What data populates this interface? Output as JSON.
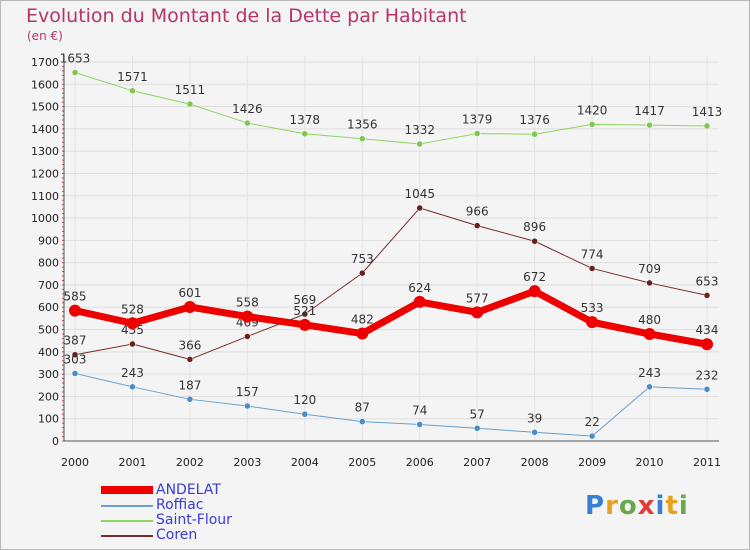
{
  "title": "Evolution du Montant de la Dette par Habitant",
  "unit": "(en €)",
  "logo": {
    "text": "Proxiti",
    "letters": [
      {
        "ch": "P",
        "color": "#3b7fd4"
      },
      {
        "ch": "r",
        "color": "#e8a020"
      },
      {
        "ch": "o",
        "color": "#6aa84f"
      },
      {
        "ch": "x",
        "color": "#e03c31"
      },
      {
        "ch": "i",
        "color": "#3b7fd4"
      },
      {
        "ch": "t",
        "color": "#e8a020"
      },
      {
        "ch": "i",
        "color": "#6aa84f"
      }
    ]
  },
  "chart_data": {
    "type": "line",
    "x": [
      "2000",
      "2001",
      "2002",
      "2003",
      "2004",
      "2005",
      "2006",
      "2007",
      "2008",
      "2009",
      "2010",
      "2011"
    ],
    "ylim": [
      0,
      1700
    ],
    "yticks": [
      0,
      100,
      200,
      300,
      400,
      500,
      600,
      700,
      800,
      900,
      1000,
      1100,
      1200,
      1300,
      1400,
      1500,
      1600,
      1700
    ],
    "grid": true,
    "legend_position": "bottom-left",
    "series": [
      {
        "name": "Saint-Flour",
        "color": "#8fd460",
        "marker": "#7ec850",
        "width": 1,
        "values": [
          1653,
          1571,
          1511,
          1426,
          1378,
          1356,
          1332,
          1379,
          1376,
          1420,
          1417,
          1413
        ]
      },
      {
        "name": "Coren",
        "color": "#7a2a2a",
        "marker": "#6b1f1f",
        "width": 1,
        "values": [
          387,
          435,
          366,
          469,
          569,
          753,
          1045,
          966,
          896,
          774,
          709,
          653
        ]
      },
      {
        "name": "Roffiac",
        "color": "#6a9fcf",
        "marker": "#4a8cc8",
        "width": 1,
        "values": [
          303,
          243,
          187,
          157,
          120,
          87,
          74,
          57,
          39,
          22,
          243,
          232
        ]
      },
      {
        "name": "ANDELAT",
        "color": "#ee0000",
        "marker": "#ee0000",
        "width": 7,
        "values": [
          585,
          528,
          601,
          558,
          521,
          482,
          624,
          577,
          672,
          533,
          480,
          434
        ]
      }
    ],
    "legend_order": [
      "ANDELAT",
      "Roffiac",
      "Saint-Flour",
      "Coren"
    ]
  }
}
